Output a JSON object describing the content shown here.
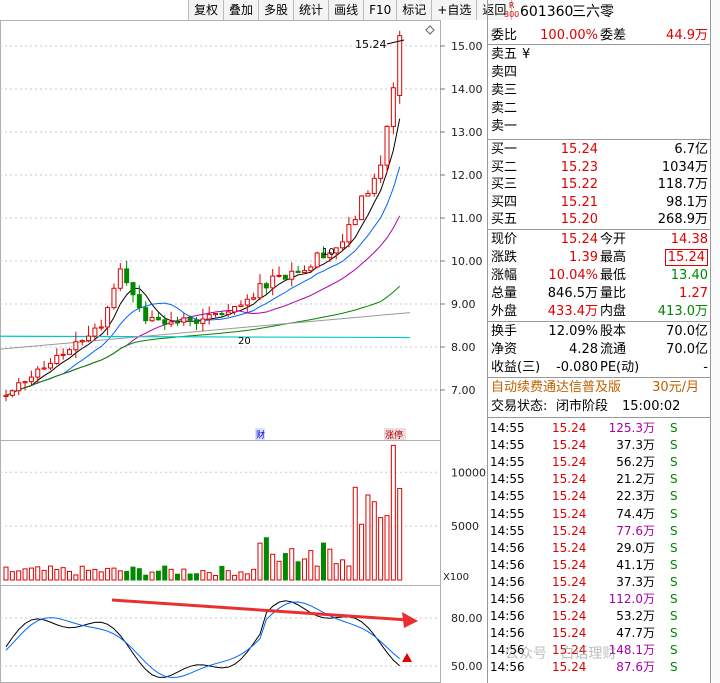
{
  "toolbar": [
    "复权",
    "叠加",
    "多股",
    "统计",
    "画线",
    "F10",
    "标记",
    "+自选",
    "返回"
  ],
  "chart": {
    "price_axis": [
      "15.00",
      "14.00",
      "13.00",
      "12.00",
      "11.00",
      "10.00",
      "9.00",
      "8.00",
      "7.00"
    ],
    "high_label": "15.24",
    "ma_label_a": "10",
    "ma_label_b": "20",
    "marker_cai": "财",
    "marker_zt": "涨停",
    "vol_axis": [
      "10000",
      "5000"
    ],
    "vol_unit": "X100",
    "macd_axis": [
      "80.00",
      "50.00"
    ],
    "watermark": "公众号 · 白话理财"
  },
  "chart_data": {
    "type": "candlestick",
    "y_range": [
      6.7,
      15.6
    ],
    "last": 15.24,
    "vol_range": [
      0,
      13000
    ],
    "osc_range": [
      40,
      95
    ]
  },
  "stock": {
    "badge_r": "R",
    "badge_300": "300",
    "code": "601360",
    "name": "三六零"
  },
  "wb": {
    "l1": "委比",
    "v1": "100.00%",
    "l2": "委差",
    "v2": "44.9万"
  },
  "sells": [
    {
      "label": "卖五",
      "price": "¥",
      "vol": ""
    },
    {
      "label": "卖四",
      "price": "",
      "vol": ""
    },
    {
      "label": "卖三",
      "price": "",
      "vol": ""
    },
    {
      "label": "卖二",
      "price": "",
      "vol": ""
    },
    {
      "label": "卖一",
      "price": "",
      "vol": ""
    }
  ],
  "buys": [
    {
      "label": "买一",
      "price": "15.24",
      "vol": "6.7亿"
    },
    {
      "label": "买二",
      "price": "15.23",
      "vol": "1034万"
    },
    {
      "label": "买三",
      "price": "15.22",
      "vol": "118.7万"
    },
    {
      "label": "买四",
      "price": "15.21",
      "vol": "98.1万"
    },
    {
      "label": "买五",
      "price": "15.20",
      "vol": "268.9万"
    }
  ],
  "stats": [
    {
      "l1": "现价",
      "v1": "15.24",
      "c1": "red",
      "l2": "今开",
      "v2": "14.38",
      "c2": "red"
    },
    {
      "l1": "涨跌",
      "v1": "1.39",
      "c1": "red",
      "l2": "最高",
      "v2": "15.24",
      "c2": "red"
    },
    {
      "l1": "涨幅",
      "v1": "10.04%",
      "c1": "red",
      "l2": "最低",
      "v2": "13.40",
      "c2": "green"
    },
    {
      "l1": "总量",
      "v1": "846.5万",
      "c1": "",
      "l2": "量比",
      "v2": "1.27",
      "c2": "red"
    },
    {
      "l1": "外盘",
      "v1": "433.4万",
      "c1": "red",
      "l2": "内盘",
      "v2": "413.0万",
      "c2": "green"
    },
    {
      "l1": "换手",
      "v1": "12.09%",
      "c1": "",
      "l2": "股本",
      "v2": "70.0亿",
      "c2": ""
    },
    {
      "l1": "净资",
      "v1": "4.28",
      "c1": "",
      "l2": "流通",
      "v2": "70.0亿",
      "c2": ""
    }
  ],
  "profit": {
    "label": "收益(三)",
    "value": "-0.080",
    "pe_label": "PE(动)",
    "pe_value": "-"
  },
  "promo": {
    "text": "自动续费通达信普及版",
    "price": "30元/月"
  },
  "trade_status": {
    "label": "交易状态:",
    "value": "闭市阶段",
    "time": "15:00:02"
  },
  "ticks": [
    {
      "t": "14:55",
      "p": "15.24",
      "v": "125.3万",
      "s": "S",
      "c": "purple"
    },
    {
      "t": "14:55",
      "p": "15.24",
      "v": "37.3万",
      "s": "S",
      "c": ""
    },
    {
      "t": "14:55",
      "p": "15.24",
      "v": "56.2万",
      "s": "S",
      "c": ""
    },
    {
      "t": "14:55",
      "p": "15.24",
      "v": "21.2万",
      "s": "S",
      "c": ""
    },
    {
      "t": "14:55",
      "p": "15.24",
      "v": "22.3万",
      "s": "S",
      "c": ""
    },
    {
      "t": "14:55",
      "p": "15.24",
      "v": "74.4万",
      "s": "S",
      "c": ""
    },
    {
      "t": "14:55",
      "p": "15.24",
      "v": "77.6万",
      "s": "S",
      "c": "purple"
    },
    {
      "t": "14:56",
      "p": "15.24",
      "v": "29.0万",
      "s": "S",
      "c": ""
    },
    {
      "t": "14:56",
      "p": "15.24",
      "v": "41.1万",
      "s": "S",
      "c": ""
    },
    {
      "t": "14:56",
      "p": "15.24",
      "v": "37.3万",
      "s": "S",
      "c": ""
    },
    {
      "t": "14:56",
      "p": "15.24",
      "v": "112.0万",
      "s": "S",
      "c": "purple"
    },
    {
      "t": "14:56",
      "p": "15.24",
      "v": "53.2万",
      "s": "S",
      "c": ""
    },
    {
      "t": "14:56",
      "p": "15.24",
      "v": "47.7万",
      "s": "S",
      "c": ""
    },
    {
      "t": "14:56",
      "p": "15.24",
      "v": "148.1万",
      "s": "S",
      "c": "purple"
    },
    {
      "t": "14:56",
      "p": "15.24",
      "v": "87.6万",
      "s": "S",
      "c": "purple"
    }
  ]
}
